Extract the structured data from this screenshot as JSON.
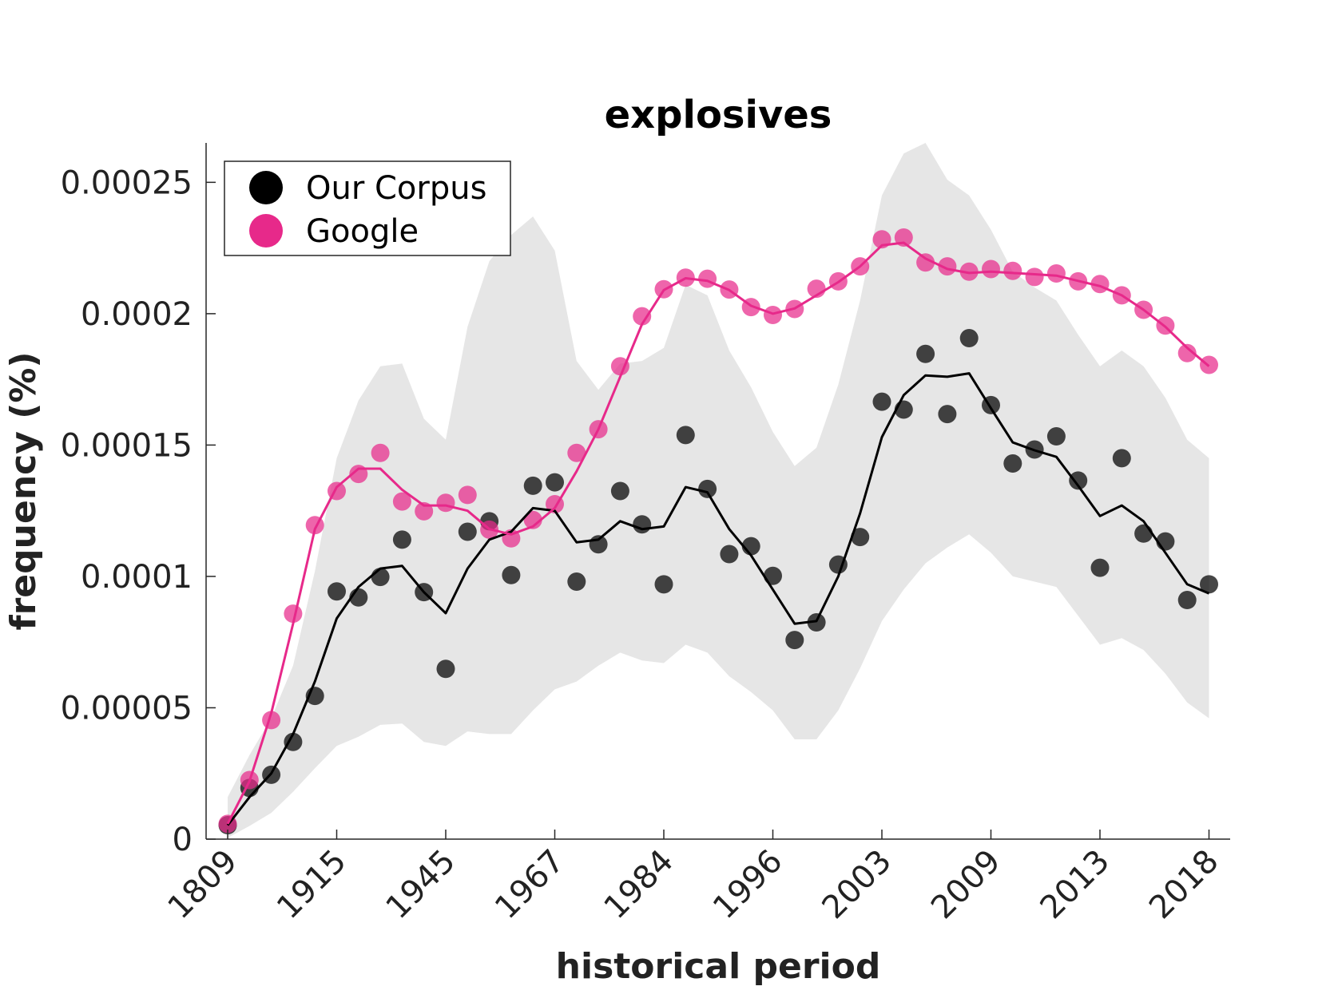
{
  "chart_data": {
    "type": "line",
    "title": "explosives",
    "xlabel": "historical period",
    "ylabel": "frequency (%)",
    "ylim": [
      0,
      0.000265
    ],
    "y_ticks": [
      {
        "value": 0,
        "label": "0"
      },
      {
        "value": 5e-05,
        "label": "0.00005"
      },
      {
        "value": 0.0001,
        "label": "0.0001"
      },
      {
        "value": 0.00015,
        "label": "0.00015"
      },
      {
        "value": 0.0002,
        "label": "0.0002"
      },
      {
        "value": 0.00025,
        "label": "0.00025"
      }
    ],
    "x_ticks": [
      {
        "index": 0,
        "label": "1809"
      },
      {
        "index": 5,
        "label": "1915"
      },
      {
        "index": 10,
        "label": "1945"
      },
      {
        "index": 15,
        "label": "1967"
      },
      {
        "index": 20,
        "label": "1984"
      },
      {
        "index": 25,
        "label": "1996"
      },
      {
        "index": 30,
        "label": "2003"
      },
      {
        "index": 35,
        "label": "2009"
      },
      {
        "index": 40,
        "label": "2013"
      },
      {
        "index": 45,
        "label": "2018"
      }
    ],
    "x_count": 46,
    "legend": {
      "placement": "top-left",
      "entries": [
        {
          "label": "Our Corpus",
          "color": "#000000"
        },
        {
          "label": "Google",
          "color": "#e7298a"
        }
      ]
    },
    "series": [
      {
        "name": "Our Corpus",
        "color": "#000000",
        "points": [
          5.3e-06,
          1.95e-05,
          2.45e-05,
          3.7e-05,
          5.45e-05,
          9.43e-05,
          9.2e-05,
          9.98e-05,
          0.000114,
          9.4e-05,
          6.48e-05,
          0.000117,
          0.000121,
          0.0001005,
          0.0001345,
          0.0001358,
          9.8e-05,
          0.0001122,
          0.0001325,
          0.0001198,
          9.7e-05,
          0.0001538,
          0.0001333,
          0.0001085,
          0.0001115,
          0.0001002,
          7.58e-05,
          8.25e-05,
          0.0001045,
          0.000115,
          0.0001665,
          0.0001635,
          0.0001847,
          0.0001618,
          0.0001907,
          0.0001652,
          0.000143,
          0.0001483,
          0.0001533,
          0.0001365,
          0.0001033,
          0.000145,
          0.0001163,
          0.0001133,
          9.1e-05,
          9.7e-05
        ],
        "smoothed": [
          5.3e-06,
          1.6e-05,
          2.5e-05,
          4e-05,
          6e-05,
          8.4e-05,
          9.6e-05,
          0.000103,
          0.000104,
          9.4e-05,
          8.6e-05,
          0.000103,
          0.000114,
          0.000117,
          0.000126,
          0.000125,
          0.000113,
          0.000114,
          0.000121,
          0.000118,
          0.000119,
          0.000134,
          0.000132,
          0.000118,
          0.000108,
          9.5e-05,
          8.2e-05,
          8.3e-05,
          0.0001,
          0.000124,
          0.000153,
          0.000169,
          0.0001765,
          0.000176,
          0.0001773,
          0.000164,
          0.000151,
          0.000148,
          0.0001455,
          0.0001345,
          0.000123,
          0.000127,
          0.000121,
          0.000109,
          9.7e-05,
          9.35e-05
        ],
        "band_upper": [
          1.6e-05,
          3.2e-05,
          4.6e-05,
          6.6e-05,
          0.000102,
          0.000145,
          0.000167,
          0.00018,
          0.000181,
          0.00016,
          0.000152,
          0.000195,
          0.00022,
          0.00023,
          0.000237,
          0.000224,
          0.000182,
          0.000171,
          0.000181,
          0.000182,
          0.000187,
          0.000211,
          0.000207,
          0.000186,
          0.000172,
          0.000155,
          0.000142,
          0.000149,
          0.000173,
          0.000205,
          0.000245,
          0.000261,
          0.000265,
          0.000251,
          0.000245,
          0.000232,
          0.000216,
          0.00021,
          0.000205,
          0.000192,
          0.00018,
          0.000186,
          0.00018,
          0.000168,
          0.000152,
          0.000145
        ],
        "band_lower": [
          5e-07,
          5e-06,
          1e-05,
          1.8e-05,
          2.7e-05,
          3.55e-05,
          3.9e-05,
          4.35e-05,
          4.4e-05,
          3.7e-05,
          3.55e-05,
          4.1e-05,
          4e-05,
          4e-05,
          4.9e-05,
          5.7e-05,
          6e-05,
          6.6e-05,
          7.1e-05,
          6.8e-05,
          6.7e-05,
          7.4e-05,
          7.1e-05,
          6.2e-05,
          5.6e-05,
          4.9e-05,
          3.8e-05,
          3.8e-05,
          4.9e-05,
          6.5e-05,
          8.3e-05,
          9.5e-05,
          0.000105,
          0.000111,
          0.000116,
          0.000109,
          0.0001,
          9.8e-05,
          9.6e-05,
          8.5e-05,
          7.4e-05,
          7.65e-05,
          7.2e-05,
          6.3e-05,
          5.2e-05,
          4.6e-05
        ]
      },
      {
        "name": "Google",
        "color": "#e7298a",
        "points": [
          5.8e-06,
          2.25e-05,
          4.53e-05,
          8.58e-05,
          0.0001195,
          0.0001325,
          0.000139,
          0.000147,
          0.0001285,
          0.0001248,
          0.000128,
          0.000131,
          0.0001178,
          0.0001145,
          0.0001215,
          0.0001275,
          0.000147,
          0.000156,
          0.00018,
          0.000199,
          0.0002093,
          0.0002137,
          0.0002133,
          0.0002092,
          0.0002025,
          0.0001995,
          0.0002018,
          0.0002095,
          0.0002123,
          0.000218,
          0.0002283,
          0.000229,
          0.0002195,
          0.000218,
          0.000216,
          0.000217,
          0.0002163,
          0.000214,
          0.0002153,
          0.0002123,
          0.0002113,
          0.000207,
          0.0002015,
          0.0001955,
          0.000185,
          0.0001805
        ],
        "smoothed": [
          5.8e-06,
          2.2e-05,
          4.8e-05,
          8.2e-05,
          0.000118,
          0.000134,
          0.000141,
          0.000141,
          0.000133,
          0.000127,
          0.000127,
          0.000125,
          0.000118,
          0.000116,
          0.000119,
          0.000126,
          0.00014,
          0.000156,
          0.000176,
          0.000196,
          0.000209,
          0.0002135,
          0.0002125,
          0.000209,
          0.000203,
          0.0002,
          0.000202,
          0.000207,
          0.000212,
          0.000218,
          0.000226,
          0.000227,
          0.000221,
          0.000217,
          0.0002155,
          0.000216,
          0.0002155,
          0.000215,
          0.0002145,
          0.0002125,
          0.0002105,
          0.000207,
          0.0002015,
          0.000195,
          0.000187,
          0.00018
        ]
      }
    ]
  }
}
